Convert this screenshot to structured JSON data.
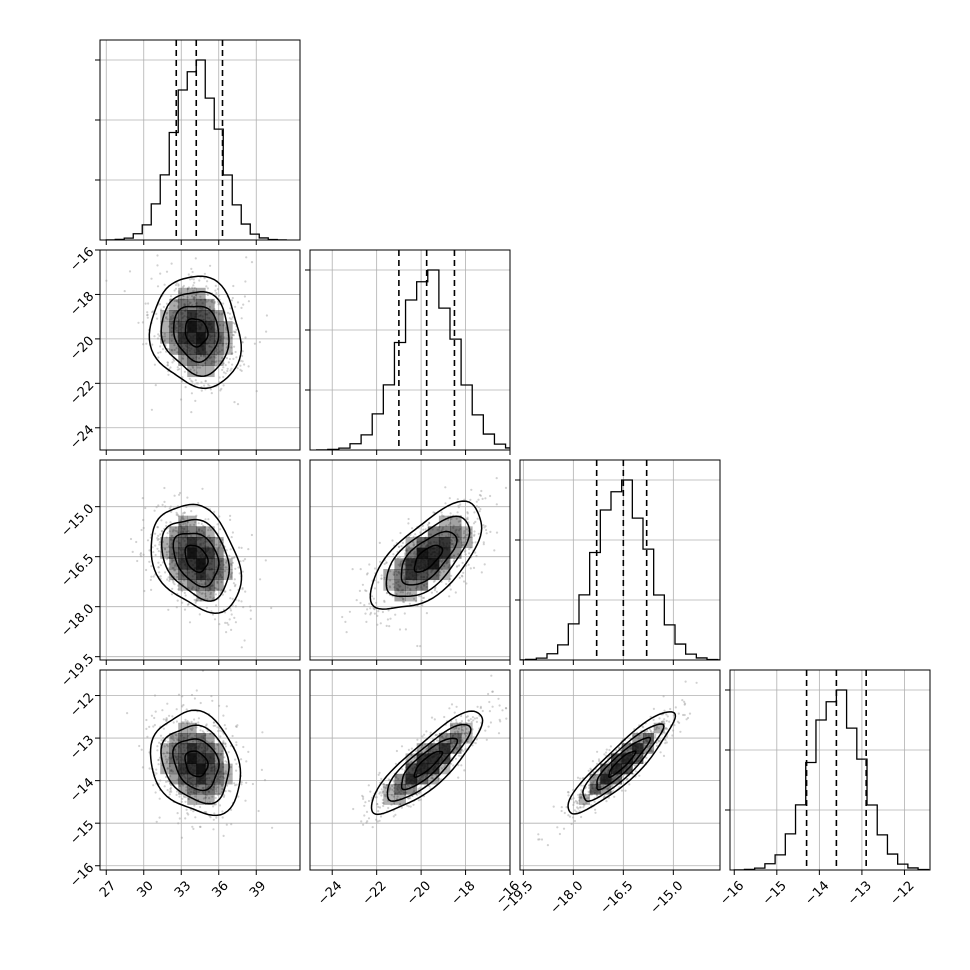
{
  "chart_data": {
    "type": "corner",
    "parameters": [
      {
        "range": [
          26.5,
          42.5
        ],
        "ticks": [
          27,
          30,
          33,
          36,
          39
        ],
        "tick_labels": [
          "27",
          "30",
          "33",
          "36",
          "39"
        ],
        "mean": 34.2,
        "sigma": 1.8,
        "quantiles": [
          32.6,
          34.2,
          36.3
        ]
      },
      {
        "range": [
          -25,
          -16
        ],
        "ticks": [
          -24,
          -22,
          -20,
          -18,
          -16
        ],
        "tick_labels": [
          "−24",
          "−22",
          "−20",
          "−18",
          "−16"
        ],
        "mean": -19.7,
        "sigma": 1.25,
        "quantiles": [
          -21.0,
          -19.75,
          -18.5
        ]
      },
      {
        "range": [
          -19.6,
          -13.6
        ],
        "ticks": [
          -19.5,
          -18.0,
          -16.5,
          -15.0
        ],
        "tick_labels": [
          "−19.5",
          "−18.0",
          "−16.5",
          "−15.0"
        ],
        "mean": -16.55,
        "sigma": 0.8,
        "quantiles": [
          -17.3,
          -16.5,
          -15.8
        ]
      },
      {
        "range": [
          -16.1,
          -11.4
        ],
        "ticks": [
          -16,
          -15,
          -14,
          -13,
          -12
        ],
        "tick_labels": [
          "−16",
          "−15",
          "−14",
          "−13",
          "−12"
        ],
        "mean": -13.6,
        "sigma": 0.6,
        "quantiles": [
          -14.3,
          -13.6,
          -12.9
        ]
      }
    ],
    "correlations": {
      "1-0": -0.1,
      "2-0": -0.3,
      "2-1": 0.65,
      "3-0": -0.2,
      "3-1": 0.85,
      "3-2": 0.9
    },
    "histogram_bins": 20,
    "contour_levels_sigma": [
      0.5,
      1.0,
      1.5,
      2.0
    ],
    "grid": true,
    "colors": {
      "contour": "#000000",
      "density": "#000000",
      "points": "#999999",
      "grid": "#b0b0b0"
    }
  }
}
